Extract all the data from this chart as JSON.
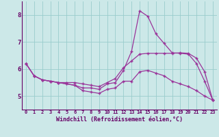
{
  "xlabel": "Windchill (Refroidissement éolien,°C)",
  "background_color": "#cce8e8",
  "grid_color": "#99cccc",
  "line_color": "#993399",
  "xlim": [
    -0.5,
    23.5
  ],
  "ylim": [
    4.5,
    8.5
  ],
  "yticks": [
    5,
    6,
    7,
    8
  ],
  "xticks": [
    0,
    1,
    2,
    3,
    4,
    5,
    6,
    7,
    8,
    9,
    10,
    11,
    12,
    13,
    14,
    15,
    16,
    17,
    18,
    19,
    20,
    21,
    22,
    23
  ],
  "series": [
    [
      6.2,
      5.75,
      5.6,
      5.55,
      5.5,
      5.45,
      5.4,
      5.3,
      5.3,
      5.25,
      5.45,
      5.5,
      5.95,
      6.65,
      8.15,
      7.95,
      7.3,
      6.95,
      6.6,
      6.58,
      6.55,
      6.2,
      5.55,
      4.85
    ],
    [
      6.2,
      5.75,
      5.6,
      5.55,
      5.5,
      5.5,
      5.5,
      5.45,
      5.4,
      5.35,
      5.5,
      5.65,
      6.05,
      6.3,
      6.55,
      6.58,
      6.58,
      6.58,
      6.58,
      6.6,
      6.58,
      6.4,
      5.9,
      4.85
    ],
    [
      6.2,
      5.75,
      5.6,
      5.55,
      5.5,
      5.45,
      5.4,
      5.2,
      5.15,
      5.1,
      5.25,
      5.3,
      5.55,
      5.55,
      5.9,
      5.95,
      5.85,
      5.75,
      5.55,
      5.45,
      5.35,
      5.2,
      5.0,
      4.85
    ]
  ]
}
